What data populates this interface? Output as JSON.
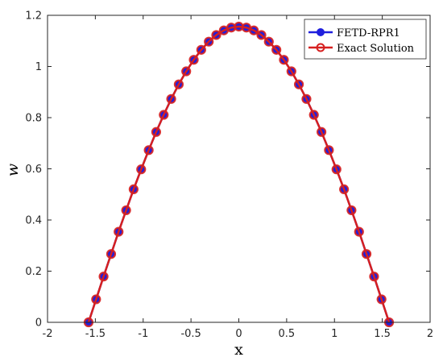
{
  "chart_data": {
    "type": "line",
    "xlabel": "x",
    "ylabel": "w",
    "xlim": [
      -2,
      2
    ],
    "ylim": [
      0,
      1.2
    ],
    "xticks": [
      -2,
      -1.5,
      -1,
      -0.5,
      0,
      0.5,
      1,
      1.5,
      2
    ],
    "xtick_labels": [
      "-2",
      "-1.5",
      "-1",
      "-0.5",
      "0",
      "0.5",
      "1",
      "1.5",
      "2"
    ],
    "yticks": [
      0,
      0.2,
      0.4,
      0.6,
      0.8,
      1,
      1.2
    ],
    "ytick_labels": [
      "0",
      "0.2",
      "0.4",
      "0.6",
      "0.8",
      "1",
      "1.2"
    ],
    "grid": false,
    "legend_position": "top-right",
    "x": [
      -1.571,
      -1.492,
      -1.414,
      -1.335,
      -1.257,
      -1.178,
      -1.1,
      -1.021,
      -0.942,
      -0.864,
      -0.785,
      -0.707,
      -0.628,
      -0.55,
      -0.471,
      -0.393,
      -0.314,
      -0.236,
      -0.157,
      -0.079,
      0.0,
      0.079,
      0.157,
      0.236,
      0.314,
      0.393,
      0.471,
      0.55,
      0.628,
      0.707,
      0.785,
      0.864,
      0.942,
      1.021,
      1.1,
      1.178,
      1.257,
      1.335,
      1.414,
      1.492,
      1.571
    ],
    "series": [
      {
        "name": "FETD-RPR1",
        "color": "#1f1fdd",
        "marker": "filled-circle",
        "values": [
          0.0,
          0.09,
          0.179,
          0.267,
          0.354,
          0.438,
          0.52,
          0.598,
          0.673,
          0.744,
          0.811,
          0.873,
          0.93,
          0.981,
          1.026,
          1.065,
          1.097,
          1.123,
          1.141,
          1.152,
          1.156,
          1.152,
          1.141,
          1.123,
          1.097,
          1.065,
          1.026,
          0.981,
          0.93,
          0.873,
          0.811,
          0.744,
          0.673,
          0.598,
          0.52,
          0.438,
          0.354,
          0.267,
          0.179,
          0.09,
          0.0
        ]
      },
      {
        "name": "Exact Solution",
        "color": "#d62020",
        "marker": "open-circle",
        "values": [
          0.0,
          0.09,
          0.179,
          0.267,
          0.354,
          0.438,
          0.52,
          0.598,
          0.673,
          0.744,
          0.811,
          0.873,
          0.93,
          0.981,
          1.026,
          1.065,
          1.097,
          1.123,
          1.141,
          1.152,
          1.156,
          1.152,
          1.141,
          1.123,
          1.097,
          1.065,
          1.026,
          0.981,
          0.93,
          0.873,
          0.811,
          0.744,
          0.673,
          0.598,
          0.52,
          0.438,
          0.354,
          0.267,
          0.179,
          0.09,
          0.0
        ]
      }
    ]
  }
}
